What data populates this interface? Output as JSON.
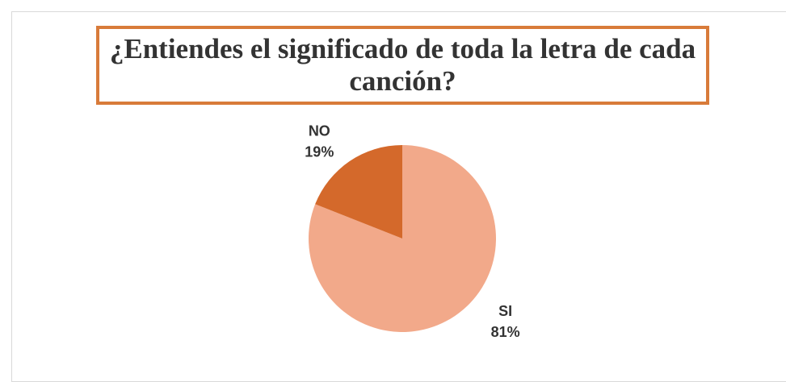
{
  "chart_data": {
    "type": "pie",
    "title": "¿Entiendes el significado de toda la letra de cada canción?",
    "categories": [
      "SI",
      "NO"
    ],
    "values": [
      81,
      19
    ],
    "value_labels": [
      "81%",
      "19%"
    ],
    "colors": [
      "#F2A98A",
      "#D4692B"
    ]
  }
}
